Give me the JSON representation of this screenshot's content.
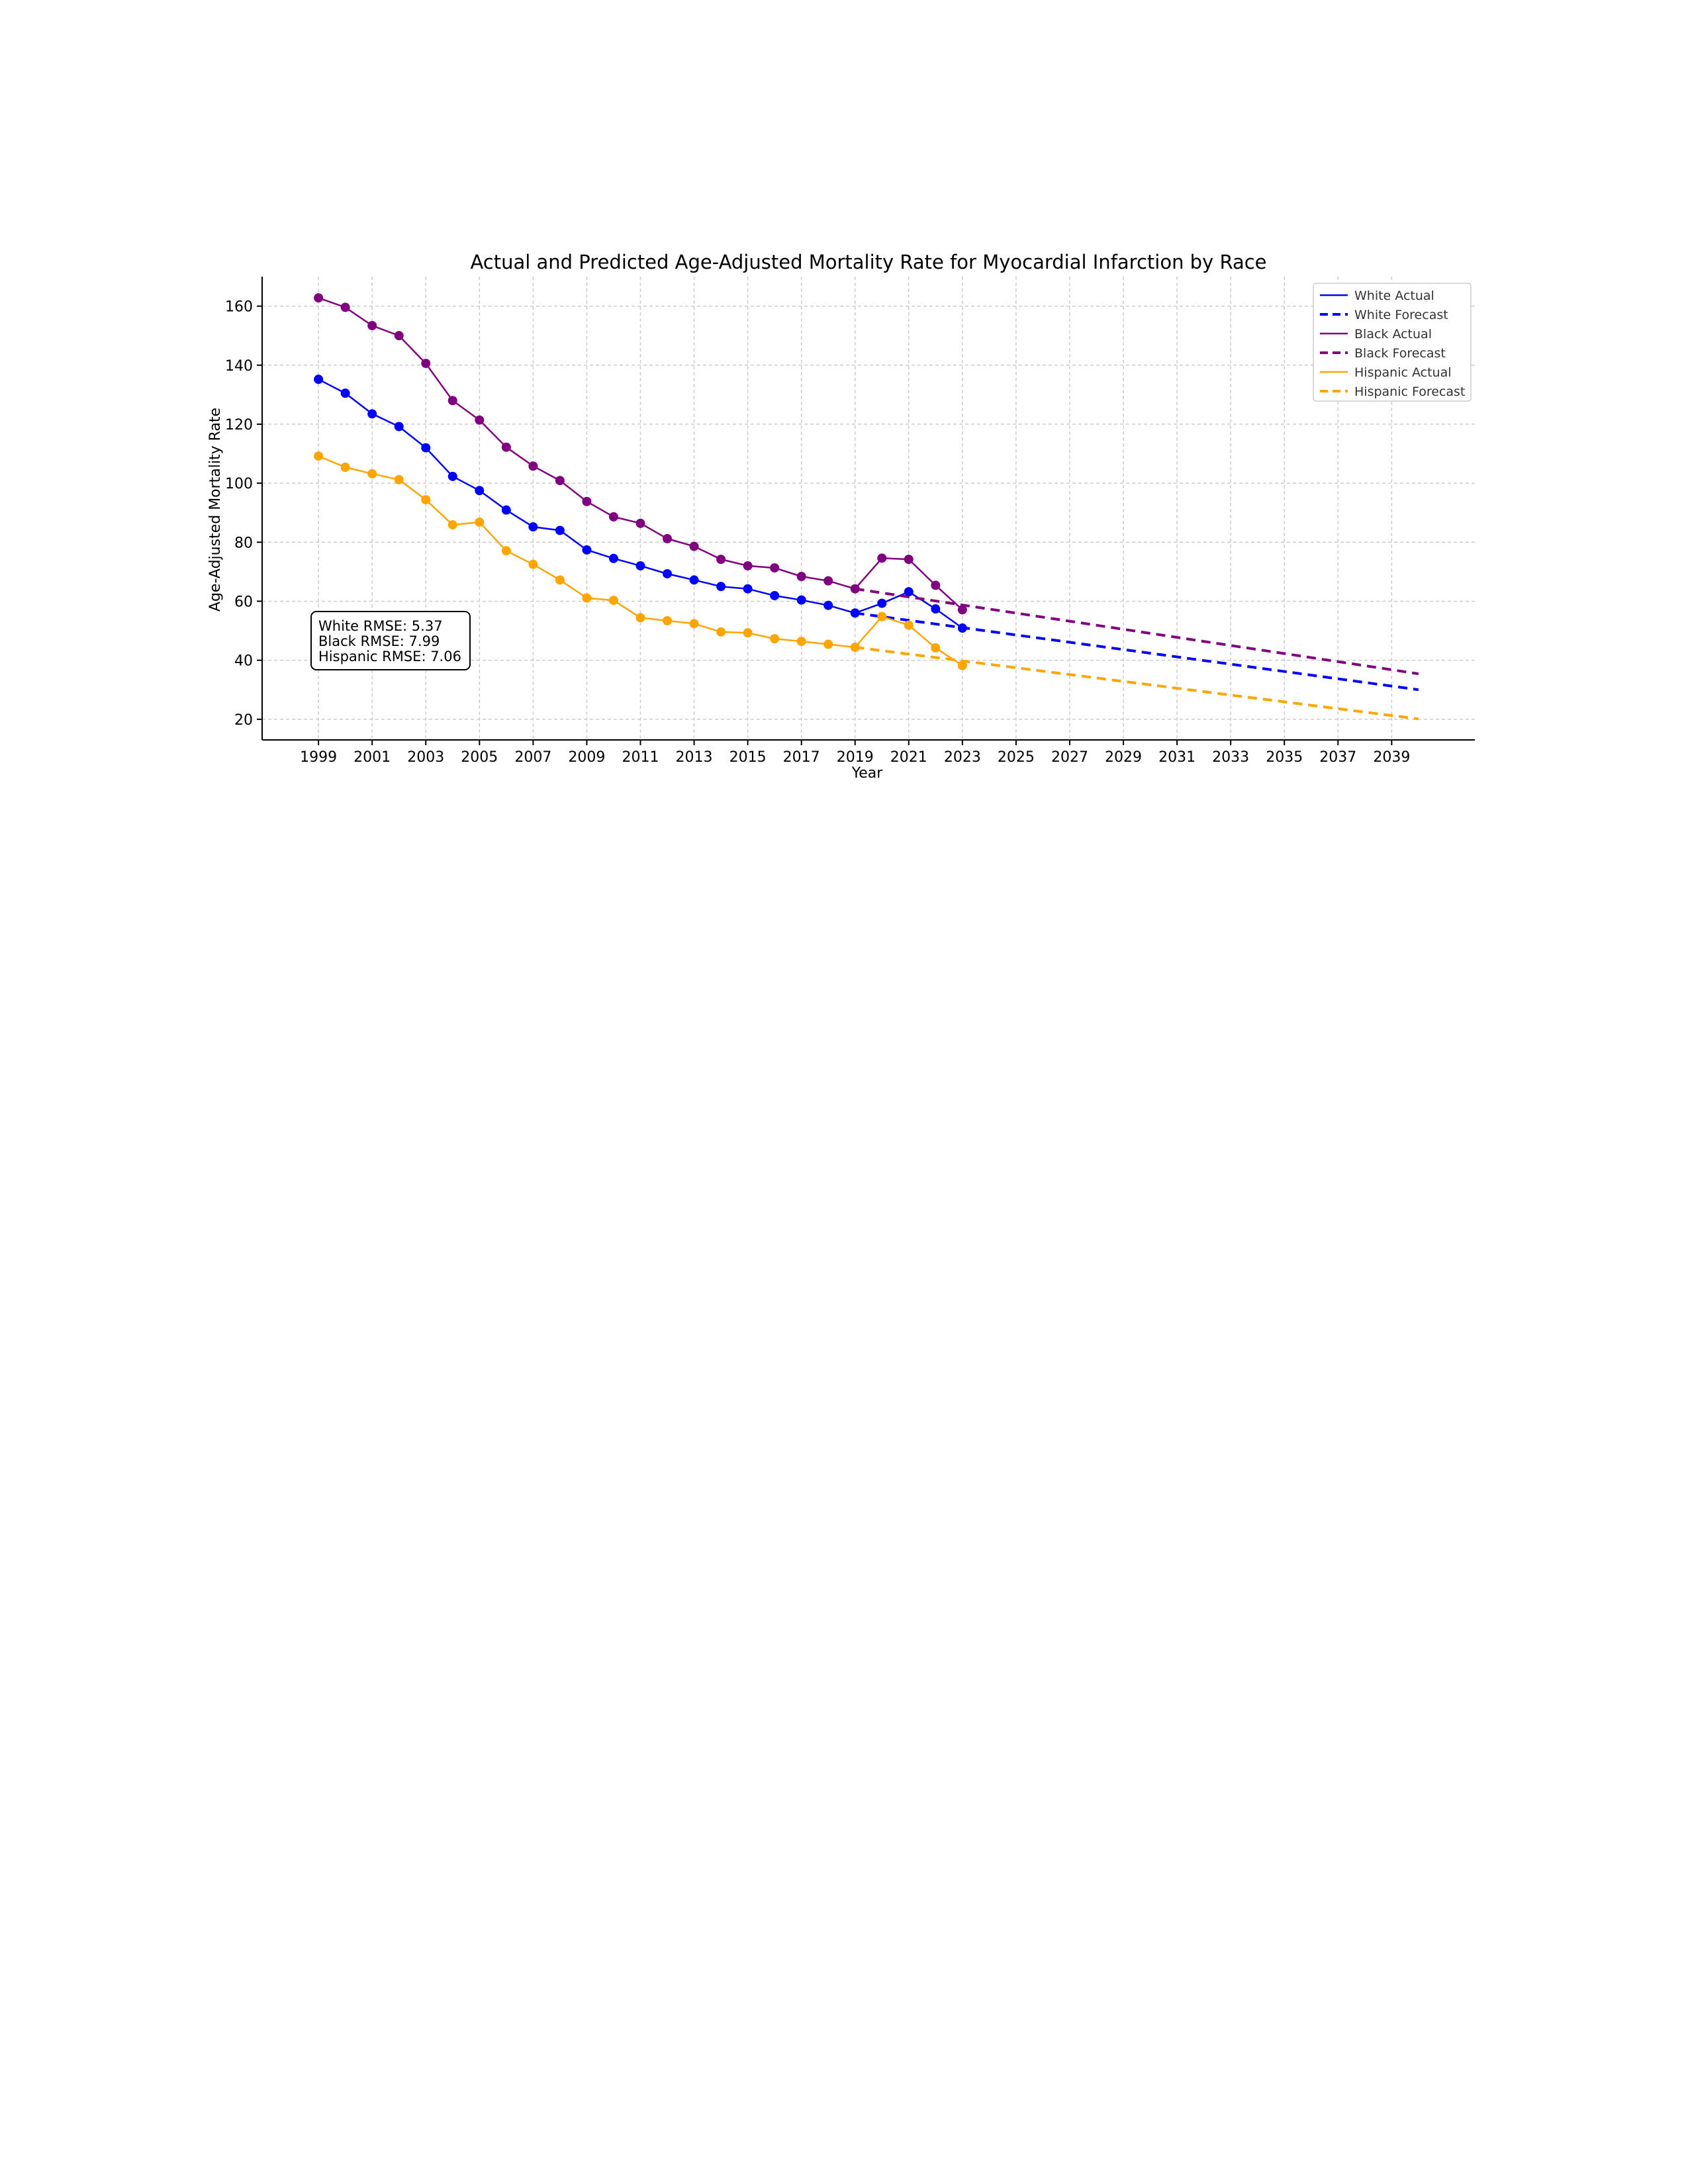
{
  "chart_data": {
    "type": "line",
    "title": "Actual and Predicted Age-Adjusted Mortality Rate for Myocardial Infarction by Race",
    "xlabel": "Year",
    "ylabel": "Age-Adjusted Mortality Rate",
    "xlim": [
      1996.9,
      2042.1
    ],
    "ylim": [
      13,
      170
    ],
    "x_ticks": [
      1999,
      2001,
      2003,
      2005,
      2007,
      2009,
      2011,
      2013,
      2015,
      2017,
      2019,
      2021,
      2023,
      2025,
      2027,
      2029,
      2031,
      2033,
      2035,
      2037,
      2039
    ],
    "y_ticks": [
      20,
      40,
      60,
      80,
      100,
      120,
      140,
      160
    ],
    "grid": true,
    "legend_position": "top-right",
    "annotation": [
      "White RMSE: 5.37",
      "Black RMSE: 7.99",
      "Hispanic RMSE: 7.06"
    ],
    "series": [
      {
        "name": "White Actual",
        "color": "#0000ff",
        "style": "solid",
        "markers": true,
        "x": [
          1999,
          2000,
          2001,
          2002,
          2003,
          2004,
          2005,
          2006,
          2007,
          2008,
          2009,
          2010,
          2011,
          2012,
          2013,
          2014,
          2015,
          2016,
          2017,
          2018,
          2019,
          2020,
          2021,
          2022,
          2023
        ],
        "y": [
          135.2,
          130.5,
          123.5,
          119.2,
          112.0,
          102.3,
          97.5,
          90.9,
          85.2,
          84.0,
          77.4,
          74.5,
          72.0,
          69.3,
          67.2,
          65.0,
          64.2,
          61.9,
          60.4,
          58.6,
          56.0,
          59.3,
          63.2,
          57.4,
          50.9
        ]
      },
      {
        "name": "White Forecast",
        "color": "#0000ff",
        "style": "dashed",
        "markers": false,
        "x": [
          2019,
          2040
        ],
        "y": [
          56.0,
          30.0
        ]
      },
      {
        "name": "Black Actual",
        "color": "#800080",
        "style": "solid",
        "markers": true,
        "x": [
          1999,
          2000,
          2001,
          2002,
          2003,
          2004,
          2005,
          2006,
          2007,
          2008,
          2009,
          2010,
          2011,
          2012,
          2013,
          2014,
          2015,
          2016,
          2017,
          2018,
          2019,
          2020,
          2021,
          2022,
          2023
        ],
        "y": [
          162.8,
          159.6,
          153.4,
          150.0,
          140.6,
          128.0,
          121.4,
          112.2,
          105.8,
          100.9,
          93.8,
          88.6,
          86.4,
          81.2,
          78.6,
          74.2,
          72.0,
          71.3,
          68.4,
          66.9,
          64.2,
          74.6,
          74.2,
          65.4,
          57.1
        ]
      },
      {
        "name": "Black Forecast",
        "color": "#800080",
        "style": "dashed",
        "markers": false,
        "x": [
          2019,
          2040
        ],
        "y": [
          64.2,
          35.4
        ]
      },
      {
        "name": "Hispanic Actual",
        "color": "#ffa500",
        "style": "solid",
        "markers": true,
        "x": [
          1999,
          2000,
          2001,
          2002,
          2003,
          2004,
          2005,
          2006,
          2007,
          2008,
          2009,
          2010,
          2011,
          2012,
          2013,
          2014,
          2015,
          2016,
          2017,
          2018,
          2019,
          2020,
          2021,
          2022,
          2023
        ],
        "y": [
          109.2,
          105.4,
          103.2,
          101.2,
          94.4,
          85.9,
          86.8,
          77.1,
          72.5,
          67.2,
          61.1,
          60.3,
          54.4,
          53.4,
          52.4,
          49.6,
          49.3,
          47.3,
          46.4,
          45.4,
          44.4,
          54.8,
          51.9,
          44.2,
          38.2
        ]
      },
      {
        "name": "Hispanic Forecast",
        "color": "#ffa500",
        "style": "dashed",
        "markers": false,
        "x": [
          2019,
          2040
        ],
        "y": [
          44.4,
          20.1
        ]
      }
    ]
  }
}
